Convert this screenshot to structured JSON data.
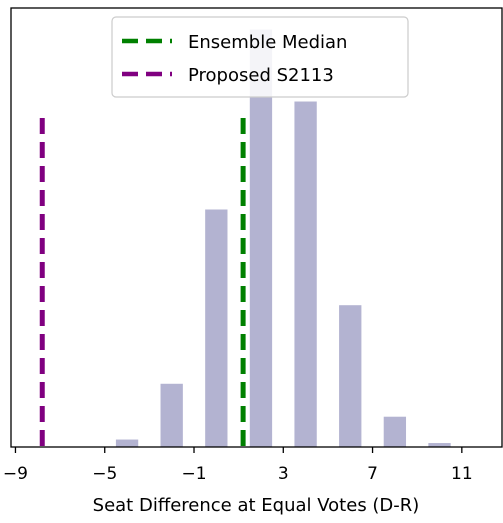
{
  "chart_data": {
    "type": "bar",
    "xlabel": "Seat Difference at Equal Votes (D-R)",
    "ylabel": "",
    "xlim": [
      -9.2,
      12.8
    ],
    "ylim": [
      0,
      1.0
    ],
    "xticks": [
      -9,
      -5,
      -1,
      3,
      7,
      11
    ],
    "xtick_labels": [
      "−9",
      "−5",
      "−1",
      "3",
      "7",
      "11"
    ],
    "yticks_visible": false,
    "grid": false,
    "bar_width": 1.0,
    "bar_color": "#b3b3d1",
    "bars": [
      {
        "x": -4,
        "value": 0.017
      },
      {
        "x": -2,
        "value": 0.144
      },
      {
        "x": 0,
        "value": 0.541
      },
      {
        "x": 2,
        "value": 0.951
      },
      {
        "x": 4,
        "value": 0.787
      },
      {
        "x": 6,
        "value": 0.323
      },
      {
        "x": 8,
        "value": 0.069
      },
      {
        "x": 10,
        "value": 0.009
      }
    ],
    "reference_lines": [
      {
        "name": "Ensemble Median",
        "x": 1.2,
        "color": "#008000",
        "style": "dashed"
      },
      {
        "name": "Proposed S2113",
        "x": -7.8,
        "color": "#800080",
        "style": "dashed"
      }
    ],
    "legend": {
      "position": "top-center",
      "entries": [
        "Ensemble Median",
        "Proposed S2113"
      ]
    }
  }
}
